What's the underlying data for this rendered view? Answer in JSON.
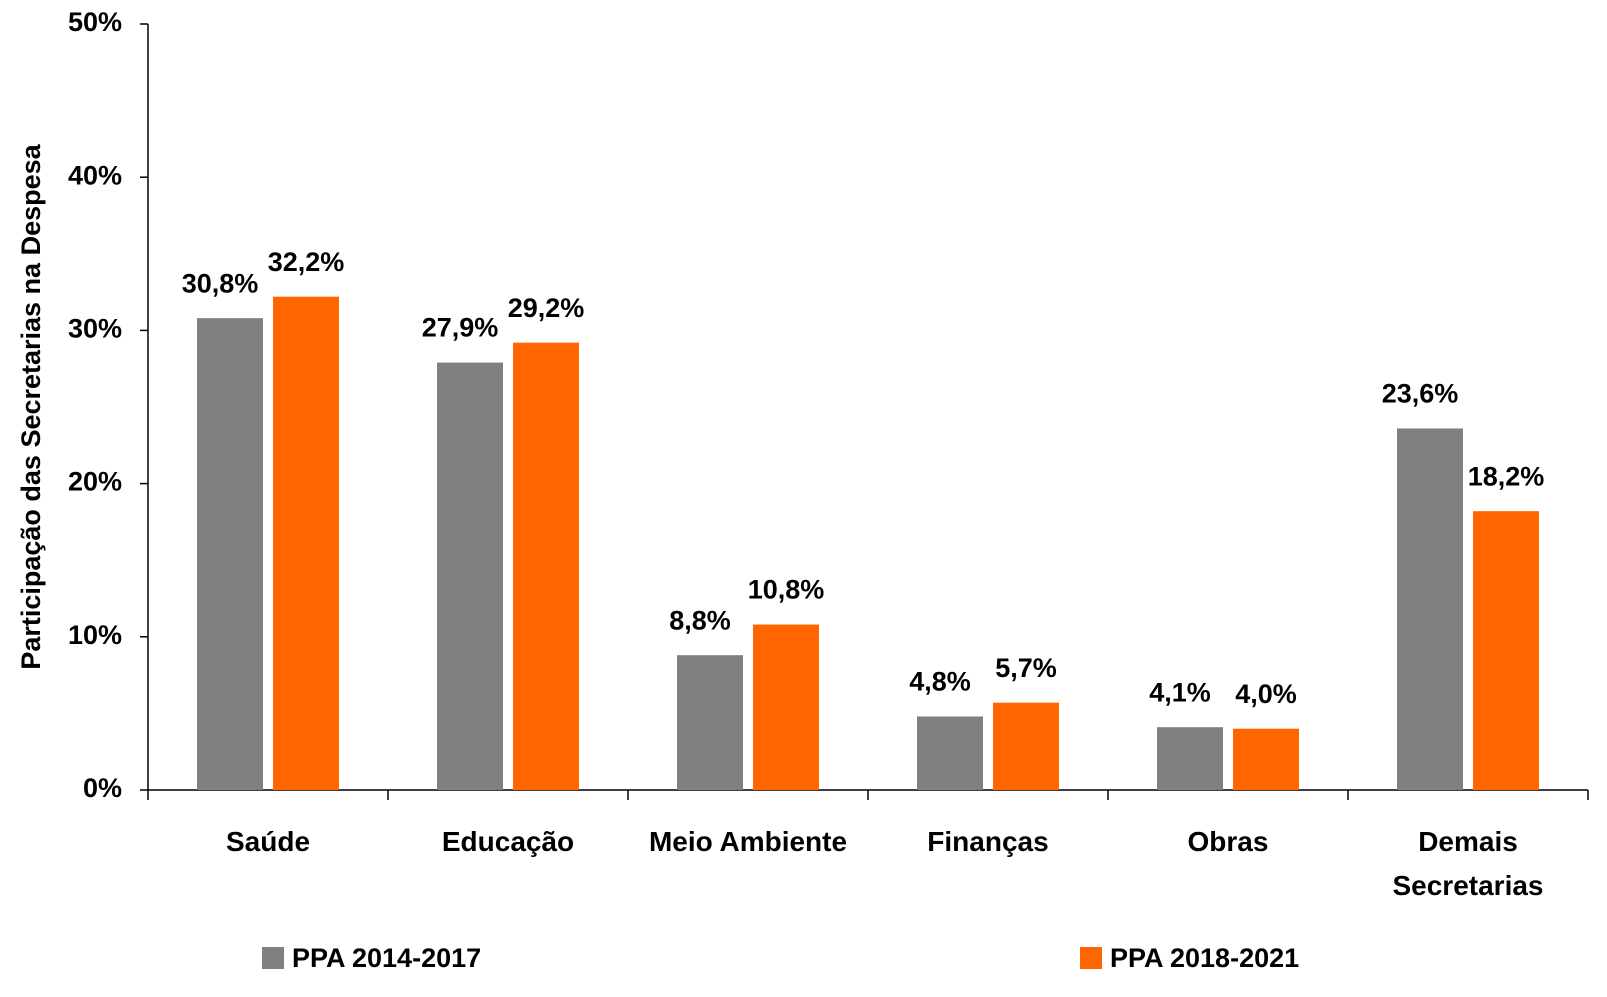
{
  "chart_data": {
    "type": "bar",
    "y_label": "Participação das Secretarias na Despesa",
    "categories": [
      "Saúde",
      "Educação",
      "Meio Ambiente",
      "Finanças",
      "Obras",
      "Demais Secretarias"
    ],
    "series": [
      {
        "name": "PPA 2014-2017",
        "color": "#808080",
        "values": [
          30.8,
          27.9,
          8.8,
          4.8,
          4.1,
          23.6
        ],
        "value_labels": [
          "30,8%",
          "27,9%",
          "8,8%",
          "4,8%",
          "4,1%",
          "23,6%"
        ]
      },
      {
        "name": "PPA 2018-2021",
        "color": "#ff6600",
        "values": [
          32.2,
          29.2,
          10.8,
          5.7,
          4.0,
          18.2
        ],
        "value_labels": [
          "32,2%",
          "29,2%",
          "10,8%",
          "5,7%",
          "4,0%",
          "18,2%"
        ]
      }
    ],
    "ylim": [
      0,
      50
    ],
    "yticks": [
      {
        "value": 0,
        "label": "0%"
      },
      {
        "value": 10,
        "label": "10%"
      },
      {
        "value": 20,
        "label": "20%"
      },
      {
        "value": 30,
        "label": "30%"
      },
      {
        "value": 40,
        "label": "40%"
      },
      {
        "value": 50,
        "label": "50%"
      }
    ],
    "grid": false
  }
}
